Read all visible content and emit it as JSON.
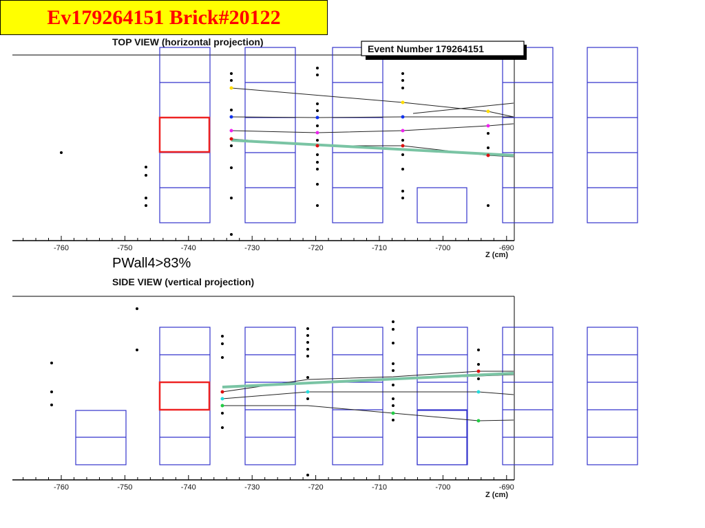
{
  "slide_title": "Ev179264151 Brick#20122",
  "top_view": {
    "title": "TOP VIEW (horizontal projection)",
    "event_label": "Event Number 179264151",
    "x_ticks": [
      -760,
      -750,
      -740,
      -730,
      -720,
      -710,
      -700,
      -690
    ],
    "x_axis_label": "Z (cm)"
  },
  "annotation": "PWall4>83%",
  "side_view": {
    "title": "SIDE VIEW (vertical projection)",
    "x_ticks": [
      -760,
      -750,
      -740,
      -730,
      -720,
      -710,
      -700,
      -690
    ],
    "x_axis_label": "Z (cm)"
  },
  "colors": {
    "title_bg": "#ffff00",
    "title_text": "#ff0000",
    "brick_outline": "#3333cc",
    "selected_brick": "#ee2222",
    "highlight_track": "#7ac4a4",
    "track": "#222222"
  }
}
